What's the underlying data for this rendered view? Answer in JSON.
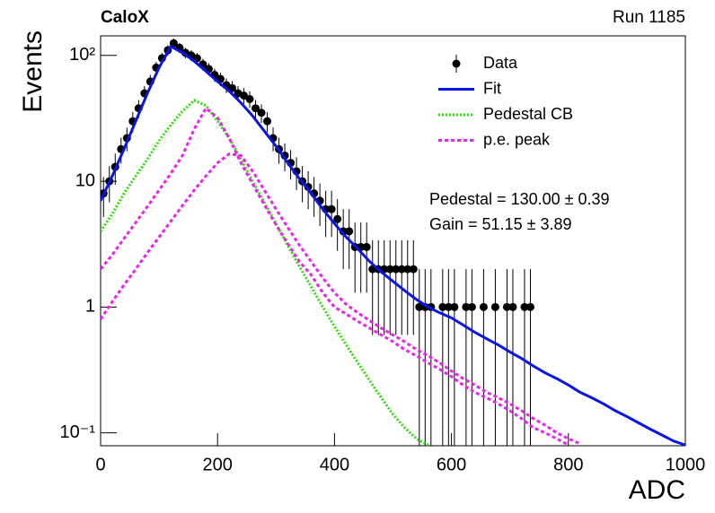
{
  "chart_data": {
    "type": "scatter",
    "title": "CaloX",
    "subtitle": "Run 1185",
    "x_label": "ADC",
    "y_label": "Events",
    "annotations": [
      "Pedestal = 130.00 ± 0.39",
      "Gain = 51.15 ± 3.89"
    ],
    "log_y": true,
    "legend": "upper right",
    "xlim": [
      0,
      1000
    ],
    "xticks": [
      0,
      200,
      400,
      600,
      800,
      1000
    ],
    "ylim": [
      0.079,
      143
    ],
    "yticks": [
      {
        "value": 0.1,
        "label": "10⁻¹"
      },
      1,
      10,
      {
        "value": 100,
        "label": "10²"
      }
    ],
    "series": [
      {
        "name": "Data",
        "style": "markers",
        "color": "#000000",
        "x": [
          5,
          15,
          25,
          35,
          45,
          55,
          65,
          75,
          85,
          95,
          105,
          115,
          125,
          135,
          145,
          155,
          165,
          175,
          185,
          195,
          205,
          215,
          225,
          235,
          245,
          255,
          265,
          275,
          285,
          295,
          305,
          315,
          325,
          335,
          345,
          355,
          365,
          375,
          385,
          395,
          405,
          415,
          425,
          435,
          445,
          455,
          465,
          475,
          485,
          495,
          505,
          515,
          525,
          535,
          545,
          555,
          565,
          575,
          585,
          595,
          605,
          615,
          625,
          635,
          645,
          655,
          665,
          675,
          685,
          695,
          705,
          715,
          725,
          735
        ],
        "values": [
          8,
          10,
          13,
          18,
          22,
          30,
          38,
          50,
          62,
          80,
          95,
          110,
          125,
          115,
          105,
          100,
          95,
          85,
          78,
          70,
          65,
          58,
          55,
          50,
          48,
          45,
          38,
          35,
          30,
          22,
          18,
          16,
          14,
          12,
          10,
          9,
          8,
          7,
          6,
          6,
          5,
          4,
          4,
          3,
          3,
          3,
          2,
          2,
          2,
          2,
          2,
          2,
          2,
          2,
          1,
          1,
          1,
          null,
          1,
          1,
          1,
          null,
          1,
          1,
          null,
          1,
          null,
          1,
          null,
          1,
          1,
          null,
          1,
          1
        ],
        "errors": [
          2.8,
          3.2,
          3.6,
          4.2,
          4.7,
          5.5,
          6.2,
          7.1,
          7.9,
          8.9,
          9.7,
          10.5,
          11.2,
          10.7,
          10.2,
          10,
          9.7,
          9.2,
          8.8,
          8.4,
          8.1,
          7.6,
          7.4,
          7.1,
          6.9,
          6.7,
          6.2,
          5.9,
          5.5,
          4.7,
          4.2,
          4,
          3.7,
          3.5,
          3.2,
          3,
          2.8,
          2.6,
          2.4,
          2.4,
          2.2,
          2,
          2,
          1.7,
          1.7,
          1.7,
          1.4,
          1.4,
          1.4,
          1.4,
          1.4,
          1.4,
          1.4,
          1.4,
          1,
          1,
          1,
          null,
          1,
          1,
          1,
          null,
          1,
          1,
          null,
          1,
          null,
          1,
          null,
          1,
          1,
          null,
          1,
          1
        ]
      },
      {
        "name": "Fit",
        "style": "solid",
        "color": "#0a14e6",
        "x": [
          0,
          20,
          40,
          60,
          80,
          100,
          120,
          140,
          160,
          180,
          200,
          220,
          240,
          260,
          280,
          300,
          320,
          340,
          360,
          380,
          400,
          420,
          440,
          460,
          480,
          500,
          520,
          540,
          560,
          580,
          600,
          620,
          640,
          660,
          680,
          700,
          720,
          740,
          760,
          780,
          800,
          820,
          840,
          860,
          880,
          900,
          920,
          940,
          960,
          980,
          1000
        ],
        "values": [
          7,
          11,
          18,
          30,
          50,
          80,
          118,
          105,
          90,
          75,
          62,
          52,
          42,
          33,
          25,
          19,
          14,
          10.5,
          8,
          6,
          4.6,
          3.6,
          2.9,
          2.3,
          1.9,
          1.6,
          1.35,
          1.15,
          1.0,
          0.9,
          0.82,
          0.72,
          0.63,
          0.56,
          0.5,
          0.44,
          0.39,
          0.34,
          0.3,
          0.27,
          0.24,
          0.21,
          0.19,
          0.17,
          0.15,
          0.135,
          0.12,
          0.107,
          0.096,
          0.086,
          0.08
        ]
      },
      {
        "name": "Pedestal CB",
        "style": "dotted",
        "color": "#33dd11",
        "x": [
          0,
          20,
          40,
          60,
          80,
          100,
          120,
          140,
          160,
          180,
          200,
          220,
          240,
          260,
          280,
          300,
          320,
          340,
          360,
          380,
          400,
          420,
          440,
          460,
          480,
          500,
          520,
          540,
          560
        ],
        "values": [
          4,
          5.5,
          8,
          11,
          15,
          21,
          28,
          36,
          44,
          40,
          30,
          22,
          15,
          10,
          6.8,
          4.6,
          3.1,
          2.1,
          1.45,
          1.0,
          0.7,
          0.5,
          0.36,
          0.26,
          0.19,
          0.14,
          0.11,
          0.09,
          0.08
        ]
      },
      {
        "name": "p.e. peak",
        "style": "dashed",
        "color": "#ee22ee",
        "x": [
          0,
          20,
          40,
          60,
          80,
          100,
          120,
          140,
          160,
          180,
          200,
          220,
          240,
          260,
          280,
          300,
          320,
          340,
          360,
          380,
          400,
          420,
          440,
          460,
          480,
          500,
          520,
          540,
          560,
          580,
          600,
          620,
          640,
          660,
          680,
          700,
          720,
          740,
          760,
          780,
          800
        ],
        "values": [
          2,
          2.6,
          3.5,
          4.7,
          6.3,
          8.5,
          11.5,
          16,
          26,
          38,
          32,
          22,
          14,
          9.5,
          6.5,
          4.5,
          3.2,
          2.3,
          1.8,
          1.3,
          1.0,
          0.88,
          0.77,
          0.68,
          0.6,
          0.53,
          0.46,
          0.41,
          0.36,
          0.32,
          0.28,
          0.24,
          0.21,
          0.19,
          0.17,
          0.15,
          0.13,
          0.11,
          0.1,
          0.09,
          0.08
        ]
      },
      {
        "style": "dashed",
        "color": "#ee22ee",
        "x": [
          0,
          20,
          40,
          60,
          80,
          100,
          120,
          140,
          160,
          180,
          200,
          220,
          240,
          260,
          280,
          300,
          320,
          340,
          360,
          380,
          400,
          420,
          440,
          460,
          480,
          500,
          520,
          540,
          560,
          580,
          600,
          620,
          640,
          660,
          680,
          700,
          720,
          740,
          760,
          780,
          800,
          820
        ],
        "values": [
          0.8,
          1.1,
          1.5,
          2,
          2.7,
          3.6,
          4.8,
          6.4,
          8.5,
          11,
          14,
          16.5,
          16,
          12,
          8.5,
          6,
          4.3,
          3.1,
          2.3,
          1.7,
          1.3,
          1.05,
          0.9,
          0.78,
          0.68,
          0.6,
          0.53,
          0.46,
          0.41,
          0.36,
          0.31,
          0.27,
          0.24,
          0.21,
          0.19,
          0.17,
          0.15,
          0.13,
          0.115,
          0.1,
          0.09,
          0.082
        ]
      }
    ]
  }
}
